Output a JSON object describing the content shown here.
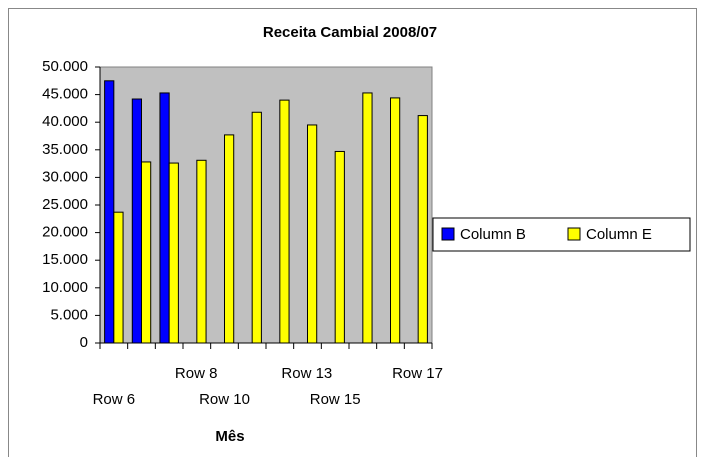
{
  "chart_data": {
    "type": "bar",
    "title": "Receita Cambial 2008/07",
    "x_label": "Mês",
    "categories": [
      "Row 6",
      null,
      "Row 8",
      null,
      "Row 10",
      null,
      "Row 13",
      null,
      "Row 15",
      null,
      "Row 17",
      null
    ],
    "series": [
      {
        "name": "Column B",
        "color": "#0000ff",
        "values": [
          47500,
          44200,
          45300,
          null,
          null,
          null,
          null,
          null,
          null,
          null,
          null,
          null
        ]
      },
      {
        "name": "Column E",
        "color": "#ffff00",
        "values": [
          23700,
          32800,
          32600,
          33100,
          37700,
          41800,
          44000,
          39500,
          34700,
          45300,
          44400,
          41200
        ]
      }
    ],
    "ylim": [
      0,
      50000
    ],
    "yticks": [
      0,
      {
        "value": 5000,
        "label": "5.000"
      },
      {
        "value": 10000,
        "label": "10.000"
      },
      {
        "value": 15000,
        "label": "15.000"
      },
      {
        "value": 20000,
        "label": "20.000"
      },
      {
        "value": 25000,
        "label": "25.000"
      },
      {
        "value": 30000,
        "label": "30.000"
      },
      {
        "value": 35000,
        "label": "35.000"
      },
      {
        "value": 40000,
        "label": "40.000"
      },
      {
        "value": 45000,
        "label": "45.000"
      },
      {
        "value": 50000,
        "label": "50.000"
      }
    ],
    "grid": false,
    "legend": "right",
    "plot_background": "#c0c0c0"
  }
}
